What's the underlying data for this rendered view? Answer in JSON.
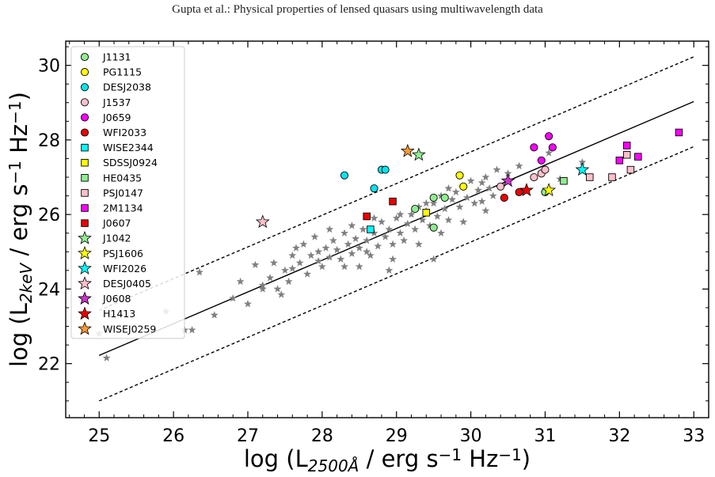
{
  "header": "Gupta et al.: Physical properties of lensed quasars using multiwavelength data",
  "chart_data": {
    "type": "scatter",
    "xlim": [
      24.55,
      33.2
    ],
    "ylim": [
      20.55,
      30.65
    ],
    "x_ticks": [
      25,
      26,
      27,
      28,
      29,
      30,
      31,
      32,
      33
    ],
    "y_ticks": [
      22,
      24,
      26,
      28,
      30
    ],
    "xlabel": {
      "pre": "log (L",
      "sub": "2500Å",
      "mid": " / erg s",
      "sup": "−1",
      "post": " Hz",
      "sup2": "−1",
      "end": ")"
    },
    "ylabel": {
      "pre": "log (L",
      "sub": "2keV",
      "mid": " / erg s",
      "sup": "−1",
      "post": " Hz",
      "sup2": "−1",
      "end": ")"
    },
    "legend_position": "upper-left",
    "fit_lines": [
      {
        "style": "solid",
        "points": [
          [
            25,
            22.22
          ],
          [
            33,
            29.03
          ]
        ]
      },
      {
        "style": "dashed",
        "points": [
          [
            25,
            21.0
          ],
          [
            33,
            27.82
          ]
        ]
      },
      {
        "style": "dashed",
        "points": [
          [
            25,
            23.43
          ],
          [
            33,
            30.23
          ]
        ]
      }
    ],
    "background_sample": {
      "marker": "star",
      "color": "#808080",
      "points": [
        [
          25.0,
          22.8
        ],
        [
          25.1,
          22.15
        ],
        [
          25.9,
          23.4
        ],
        [
          26.15,
          22.9
        ],
        [
          26.25,
          22.9
        ],
        [
          26.35,
          24.45
        ],
        [
          26.55,
          23.3
        ],
        [
          26.8,
          23.75
        ],
        [
          26.9,
          24.2
        ],
        [
          27.0,
          23.6
        ],
        [
          27.1,
          24.65
        ],
        [
          27.2,
          24.0
        ],
        [
          27.3,
          24.3
        ],
        [
          27.35,
          24.7
        ],
        [
          27.4,
          24.0
        ],
        [
          27.45,
          23.85
        ],
        [
          27.5,
          24.5
        ],
        [
          27.55,
          24.2
        ],
        [
          27.6,
          24.9
        ],
        [
          27.65,
          25.1
        ],
        [
          27.7,
          24.7
        ],
        [
          27.75,
          25.2
        ],
        [
          27.8,
          24.4
        ],
        [
          27.85,
          24.9
        ],
        [
          27.9,
          25.4
        ],
        [
          27.95,
          25.0
        ],
        [
          28.0,
          24.6
        ],
        [
          28.05,
          25.1
        ],
        [
          28.1,
          24.85
        ],
        [
          28.15,
          25.3
        ],
        [
          28.2,
          25.05
        ],
        [
          28.25,
          24.8
        ],
        [
          28.3,
          25.5
        ],
        [
          28.35,
          25.2
        ],
        [
          28.4,
          24.95
        ],
        [
          28.45,
          25.35
        ],
        [
          28.5,
          25.1
        ],
        [
          28.55,
          25.6
        ],
        [
          28.6,
          25.3
        ],
        [
          28.65,
          24.9
        ],
        [
          28.7,
          25.5
        ],
        [
          28.75,
          25.15
        ],
        [
          28.8,
          25.8
        ],
        [
          28.85,
          25.4
        ],
        [
          28.9,
          25.6
        ],
        [
          28.95,
          25.2
        ],
        [
          29.0,
          25.9
        ],
        [
          29.05,
          25.5
        ],
        [
          29.1,
          25.3
        ],
        [
          29.15,
          25.75
        ],
        [
          29.2,
          26.0
        ],
        [
          29.25,
          25.6
        ],
        [
          29.3,
          26.2
        ],
        [
          29.35,
          25.85
        ],
        [
          29.4,
          26.1
        ],
        [
          29.45,
          25.7
        ],
        [
          29.5,
          26.3
        ],
        [
          29.55,
          25.95
        ],
        [
          29.6,
          26.5
        ],
        [
          29.65,
          26.15
        ],
        [
          29.7,
          25.85
        ],
        [
          29.75,
          26.4
        ],
        [
          29.8,
          26.6
        ],
        [
          29.85,
          26.2
        ],
        [
          29.9,
          26.75
        ],
        [
          29.95,
          26.45
        ],
        [
          30.0,
          26.9
        ],
        [
          30.05,
          26.3
        ],
        [
          30.1,
          26.65
        ],
        [
          30.15,
          26.85
        ],
        [
          30.2,
          27.0
        ],
        [
          30.25,
          26.7
        ],
        [
          30.3,
          26.5
        ],
        [
          30.35,
          27.2
        ],
        [
          30.5,
          27.1
        ],
        [
          30.65,
          27.3
        ],
        [
          31.05,
          27.65
        ],
        [
          31.2,
          26.95
        ],
        [
          31.5,
          27.4
        ],
        [
          27.2,
          24.1
        ],
        [
          27.6,
          24.55
        ],
        [
          27.95,
          24.75
        ],
        [
          28.3,
          24.6
        ],
        [
          28.6,
          25.0
        ],
        [
          28.95,
          24.8
        ],
        [
          29.3,
          25.2
        ],
        [
          29.6,
          25.5
        ],
        [
          29.9,
          25.8
        ],
        [
          30.2,
          26.1
        ],
        [
          28.1,
          25.6
        ],
        [
          28.4,
          25.7
        ],
        [
          28.7,
          25.9
        ],
        [
          29.05,
          26.0
        ],
        [
          29.4,
          26.3
        ],
        [
          29.7,
          26.7
        ],
        [
          28.5,
          24.6
        ],
        [
          28.9,
          24.5
        ],
        [
          29.5,
          24.8
        ],
        [
          30.15,
          26.35
        ]
      ]
    },
    "series": [
      {
        "name": "J1131",
        "marker": "circle",
        "color": "#90ee90",
        "points": [
          [
            29.25,
            26.15
          ],
          [
            29.5,
            25.65
          ],
          [
            29.5,
            26.45
          ],
          [
            29.65,
            26.45
          ],
          [
            31.0,
            26.6
          ]
        ]
      },
      {
        "name": "PG1115",
        "marker": "circle",
        "color": "#ffff00",
        "points": [
          [
            29.85,
            27.05
          ],
          [
            29.9,
            26.75
          ]
        ]
      },
      {
        "name": "DESJ2038",
        "marker": "circle",
        "color": "#00e5ee",
        "points": [
          [
            28.3,
            27.05
          ],
          [
            28.7,
            26.7
          ],
          [
            28.8,
            27.2
          ],
          [
            28.85,
            27.2
          ]
        ]
      },
      {
        "name": "J1537",
        "marker": "circle",
        "color": "#ffc0cb",
        "points": [
          [
            30.4,
            26.75
          ],
          [
            30.85,
            27.0
          ],
          [
            30.95,
            27.1
          ],
          [
            31.0,
            27.2
          ]
        ]
      },
      {
        "name": "J0659",
        "marker": "circle",
        "color": "#ff00ff",
        "points": [
          [
            30.85,
            27.8
          ],
          [
            30.95,
            27.45
          ],
          [
            31.05,
            28.1
          ],
          [
            31.1,
            27.8
          ]
        ]
      },
      {
        "name": "WFI2033",
        "marker": "circle",
        "color": "#ee0000",
        "points": [
          [
            30.45,
            26.45
          ],
          [
            30.65,
            26.6
          ]
        ]
      },
      {
        "name": "WISE2344",
        "marker": "square",
        "color": "#00ffff",
        "points": [
          [
            28.65,
            25.6
          ]
        ]
      },
      {
        "name": "SDSSJ0924",
        "marker": "square",
        "color": "#ffff00",
        "points": [
          [
            29.4,
            26.05
          ]
        ]
      },
      {
        "name": "HE0435",
        "marker": "square",
        "color": "#90ee90",
        "points": [
          [
            31.25,
            26.9
          ]
        ]
      },
      {
        "name": "PSJ0147",
        "marker": "square",
        "color": "#ffc0cb",
        "points": [
          [
            31.6,
            27.0
          ],
          [
            31.9,
            27.0
          ],
          [
            32.1,
            27.6
          ],
          [
            32.15,
            27.2
          ]
        ]
      },
      {
        "name": "2M1134",
        "marker": "square",
        "color": "#ff00ff",
        "points": [
          [
            32.0,
            27.45
          ],
          [
            32.1,
            27.85
          ],
          [
            32.25,
            27.55
          ],
          [
            32.8,
            28.2
          ]
        ]
      },
      {
        "name": "J0607",
        "marker": "square",
        "color": "#ee0000",
        "points": [
          [
            28.6,
            25.95
          ],
          [
            28.95,
            26.35
          ]
        ]
      },
      {
        "name": "J1042",
        "marker": "star",
        "color": "#90ee90",
        "points": [
          [
            29.3,
            27.6
          ]
        ]
      },
      {
        "name": "PSJ1606",
        "marker": "star",
        "color": "#ffff00",
        "points": [
          [
            31.05,
            26.65
          ]
        ]
      },
      {
        "name": "WFI2026",
        "marker": "star",
        "color": "#00ffff",
        "points": [
          [
            31.5,
            27.2
          ]
        ]
      },
      {
        "name": "DESJ0405",
        "marker": "star",
        "color": "#ffc0cb",
        "points": [
          [
            27.2,
            25.8
          ]
        ]
      },
      {
        "name": "J0608",
        "marker": "star",
        "color": "#cc33cc",
        "points": [
          [
            30.5,
            26.9
          ]
        ]
      },
      {
        "name": "H1413",
        "marker": "star",
        "color": "#ee0000",
        "points": [
          [
            30.75,
            26.65
          ]
        ]
      },
      {
        "name": "WISEJ0259",
        "marker": "star",
        "color": "#ff9933",
        "points": [
          [
            29.15,
            27.7
          ]
        ]
      }
    ]
  }
}
